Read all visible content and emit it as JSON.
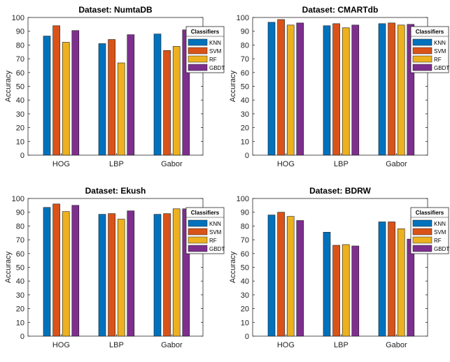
{
  "chart_data": [
    {
      "type": "bar",
      "title": "Dataset: NumtaDB",
      "xlabel": "",
      "ylabel": "Accuracy",
      "ylim": [
        0,
        100
      ],
      "yticks": [
        0,
        10,
        20,
        30,
        40,
        50,
        60,
        70,
        80,
        90,
        100
      ],
      "categories": [
        "HOG",
        "LBP",
        "Gabor"
      ],
      "legend_title": "Classifiers",
      "legend_position": "top-right",
      "series": [
        {
          "name": "KNN",
          "color": "#0072BD",
          "values": [
            86.5,
            81,
            88
          ]
        },
        {
          "name": "SVM",
          "color": "#D95319",
          "values": [
            94,
            84,
            76
          ]
        },
        {
          "name": "RF",
          "color": "#EDB120",
          "values": [
            82,
            67,
            79
          ]
        },
        {
          "name": "GBDT",
          "color": "#7E2F8E",
          "values": [
            90.5,
            87.5,
            91
          ]
        }
      ]
    },
    {
      "type": "bar",
      "title": "Dataset: CMARTdb",
      "xlabel": "",
      "ylabel": "Accuracy",
      "ylim": [
        0,
        100
      ],
      "yticks": [
        0,
        10,
        20,
        30,
        40,
        50,
        60,
        70,
        80,
        90,
        100
      ],
      "categories": [
        "HOG",
        "LBP",
        "Gabor"
      ],
      "legend_title": "Classifiers",
      "legend_position": "top-right",
      "series": [
        {
          "name": "KNN",
          "color": "#0072BD",
          "values": [
            96.5,
            94,
            95.5
          ]
        },
        {
          "name": "SVM",
          "color": "#D95319",
          "values": [
            98.5,
            95.5,
            96
          ]
        },
        {
          "name": "RF",
          "color": "#EDB120",
          "values": [
            94.5,
            92.5,
            94.5
          ]
        },
        {
          "name": "GBDT",
          "color": "#7E2F8E",
          "values": [
            96,
            94.5,
            95
          ]
        }
      ]
    },
    {
      "type": "bar",
      "title": "Dataset: Ekush",
      "xlabel": "",
      "ylabel": "Accuracy",
      "ylim": [
        0,
        100
      ],
      "yticks": [
        0,
        10,
        20,
        30,
        40,
        50,
        60,
        70,
        80,
        90,
        100
      ],
      "categories": [
        "HOG",
        "LBP",
        "Gabor"
      ],
      "legend_title": "Classifiers",
      "legend_position": "top-right",
      "series": [
        {
          "name": "KNN",
          "color": "#0072BD",
          "values": [
            93.5,
            88.5,
            88.5
          ]
        },
        {
          "name": "SVM",
          "color": "#D95319",
          "values": [
            96,
            89,
            89
          ]
        },
        {
          "name": "RF",
          "color": "#EDB120",
          "values": [
            90.5,
            85,
            92.5
          ]
        },
        {
          "name": "GBDT",
          "color": "#7E2F8E",
          "values": [
            95,
            91,
            92.5
          ]
        }
      ]
    },
    {
      "type": "bar",
      "title": "Dataset: BDRW",
      "xlabel": "",
      "ylabel": "Accuracy",
      "ylim": [
        0,
        100
      ],
      "yticks": [
        0,
        10,
        20,
        30,
        40,
        50,
        60,
        70,
        80,
        90,
        100
      ],
      "categories": [
        "HOG",
        "LBP",
        "Gabor"
      ],
      "legend_title": "Classifiers",
      "legend_position": "top-right",
      "series": [
        {
          "name": "KNN",
          "color": "#0072BD",
          "values": [
            88,
            75.5,
            83
          ]
        },
        {
          "name": "SVM",
          "color": "#D95319",
          "values": [
            90,
            66,
            83
          ]
        },
        {
          "name": "RF",
          "color": "#EDB120",
          "values": [
            87,
            66.5,
            78
          ]
        },
        {
          "name": "GBDT",
          "color": "#7E2F8E",
          "values": [
            84,
            65.5,
            70.5
          ]
        }
      ]
    }
  ]
}
